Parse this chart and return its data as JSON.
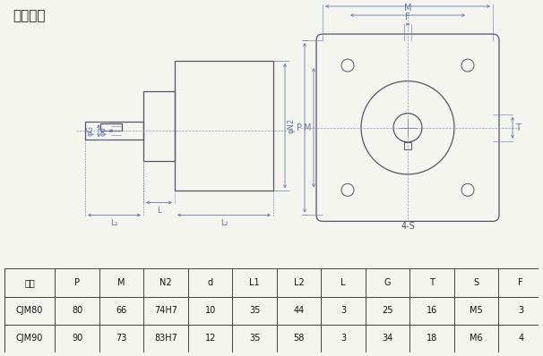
{
  "title": "减速装置",
  "title_fontsize": 11,
  "bg_color": "#f5f5f0",
  "line_color": "#555566",
  "dim_color": "#6677aa",
  "thin_color": "#8899bb",
  "table_headers": [
    "型号",
    "P",
    "M",
    "N2",
    "d",
    "L1",
    "L2",
    "L",
    "G",
    "T",
    "S",
    "F"
  ],
  "table_rows": [
    [
      "CJM80",
      "80",
      "66",
      "74H7",
      "10",
      "35",
      "44",
      "3",
      "25",
      "16",
      "M5",
      "3"
    ],
    [
      "CJM90",
      "90",
      "73",
      "83H7",
      "12",
      "35",
      "58",
      "3",
      "34",
      "18",
      "M6",
      "4"
    ]
  ]
}
